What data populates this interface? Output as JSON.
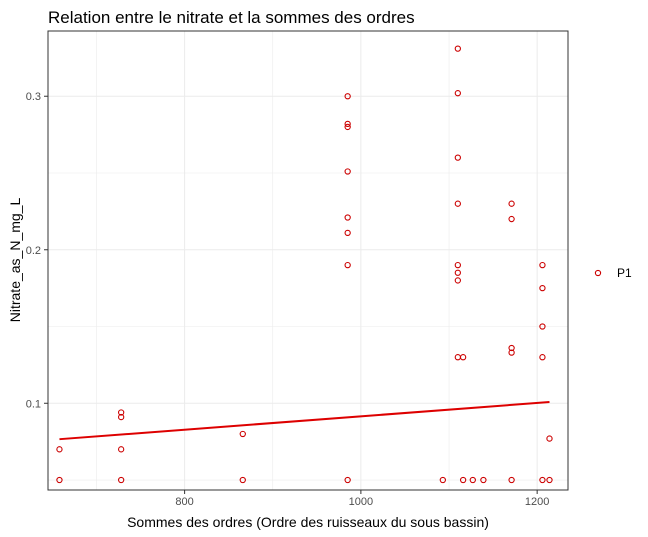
{
  "chart_data": {
    "type": "scatter",
    "title": "Relation entre le nitrate et la sommes des ordres",
    "xlabel": "Sommes des ordres (Ordre des ruisseaux du sous bassin)",
    "ylabel": "Nitrate_as_N_mg_L",
    "xlim": [
      645,
      1235
    ],
    "ylim": [
      0.0435,
      0.3425
    ],
    "x_ticks": [
      800,
      1000,
      1200
    ],
    "y_ticks": [
      0.1,
      0.2,
      0.3
    ],
    "x_tick_labels": [
      "800",
      "1000",
      "1200"
    ],
    "y_tick_labels": [
      "0.1",
      "0.2",
      "0.3"
    ],
    "grid": true,
    "legend_position": "right",
    "colors": {
      "series": "#cc0000",
      "trend": "#dd0000",
      "grid": "#ebebeb",
      "panel_border": "#333333"
    },
    "series": [
      {
        "name": "P1",
        "points": [
          [
            658,
            0.05
          ],
          [
            658,
            0.07
          ],
          [
            728,
            0.05
          ],
          [
            728,
            0.07
          ],
          [
            728,
            0.091
          ],
          [
            728,
            0.094
          ],
          [
            866,
            0.05
          ],
          [
            866,
            0.08
          ],
          [
            985,
            0.05
          ],
          [
            985,
            0.19
          ],
          [
            985,
            0.211
          ],
          [
            985,
            0.221
          ],
          [
            985,
            0.251
          ],
          [
            985,
            0.28
          ],
          [
            985,
            0.282
          ],
          [
            985,
            0.3
          ],
          [
            1093,
            0.05
          ],
          [
            1110,
            0.13
          ],
          [
            1110,
            0.18
          ],
          [
            1110,
            0.185
          ],
          [
            1110,
            0.19
          ],
          [
            1110,
            0.23
          ],
          [
            1110,
            0.26
          ],
          [
            1110,
            0.302
          ],
          [
            1110,
            0.331
          ],
          [
            1116,
            0.05
          ],
          [
            1116,
            0.13
          ],
          [
            1127,
            0.05
          ],
          [
            1139,
            0.05
          ],
          [
            1171,
            0.05
          ],
          [
            1171,
            0.133
          ],
          [
            1171,
            0.136
          ],
          [
            1171,
            0.22
          ],
          [
            1171,
            0.23
          ],
          [
            1206,
            0.05
          ],
          [
            1206,
            0.13
          ],
          [
            1206,
            0.15
          ],
          [
            1206,
            0.175
          ],
          [
            1206,
            0.19
          ],
          [
            1214,
            0.05
          ],
          [
            1214,
            0.077
          ]
        ]
      }
    ],
    "trend_line": {
      "x": [
        658,
        1214
      ],
      "y": [
        0.0766,
        0.1008
      ]
    }
  }
}
